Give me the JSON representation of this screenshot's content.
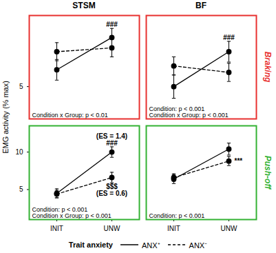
{
  "chart_data": {
    "type": "line",
    "y_label": "EMG activity (% max)",
    "legend_title": "Trait anxiety",
    "legend": "bottom",
    "categories": [
      "INIT",
      "UNW"
    ],
    "columns": [
      "STSM",
      "BF"
    ],
    "rows": [
      {
        "label": "Braking",
        "color": "#e8302f",
        "ylim": [
          2.5,
          10.5
        ],
        "yticks": [
          5
        ]
      },
      {
        "label": "Push-off",
        "color": "#33b233",
        "ylim": [
          1,
          13.5
        ],
        "yticks": [
          5,
          10
        ]
      }
    ],
    "series": [
      {
        "name": "ANX⁺",
        "color": "#000000",
        "line_style": "solid",
        "marker": "circle"
      },
      {
        "name": "ANX⁻",
        "color": "#000000",
        "line_style": "dashed",
        "marker": "circle"
      }
    ],
    "panels": [
      {
        "column": 0,
        "row": 0,
        "values": [
          [
            6.3,
            8.8
          ],
          [
            7.7,
            8.0
          ]
        ],
        "errors": [
          [
            0.8,
            0.7
          ],
          [
            0.7,
            0.7
          ]
        ],
        "stats": [
          "Condition x Group: p < 0.01"
        ],
        "annotations": [
          {
            "text": [
              "###"
            ],
            "series": 0,
            "category": "UNW",
            "position": "above"
          }
        ]
      },
      {
        "column": 1,
        "row": 0,
        "values": [
          [
            5.0,
            7.7
          ],
          [
            6.6,
            6.1
          ]
        ],
        "errors": [
          [
            0.9,
            0.8
          ],
          [
            0.7,
            0.7
          ]
        ],
        "stats": [
          "Condition: p < 0.001",
          "Condition x Group: p < 0.001"
        ],
        "annotations": [
          {
            "text": [
              "###"
            ],
            "series": 0,
            "category": "UNW",
            "position": "above"
          }
        ]
      },
      {
        "column": 0,
        "row": 1,
        "values": [
          [
            4.5,
            10.0
          ],
          [
            4.4,
            6.6
          ]
        ],
        "errors": [
          [
            0.6,
            0.7
          ],
          [
            0.5,
            0.7
          ]
        ],
        "stats": [
          "Condition: p < 0.001",
          "Condition x Group: p < 0.001"
        ],
        "annotations": [
          {
            "text": [
              "(ES = 1.4)",
              "###"
            ],
            "series": 0,
            "category": "UNW",
            "position": "above"
          },
          {
            "text": [
              "$$$",
              "(ES = 0.6)"
            ],
            "series": 1,
            "category": "UNW",
            "position": "below"
          }
        ]
      },
      {
        "column": 1,
        "row": 1,
        "values": [
          [
            6.4,
            10.4
          ],
          [
            6.6,
            8.8
          ]
        ],
        "errors": [
          [
            0.6,
            0.8
          ],
          [
            0.5,
            0.6
          ]
        ],
        "stats": [
          "Condition: p < 0.001"
        ],
        "annotations": [
          {
            "text": [
              "***"
            ],
            "series": 1,
            "category": "UNW",
            "position": "right"
          }
        ]
      }
    ]
  }
}
